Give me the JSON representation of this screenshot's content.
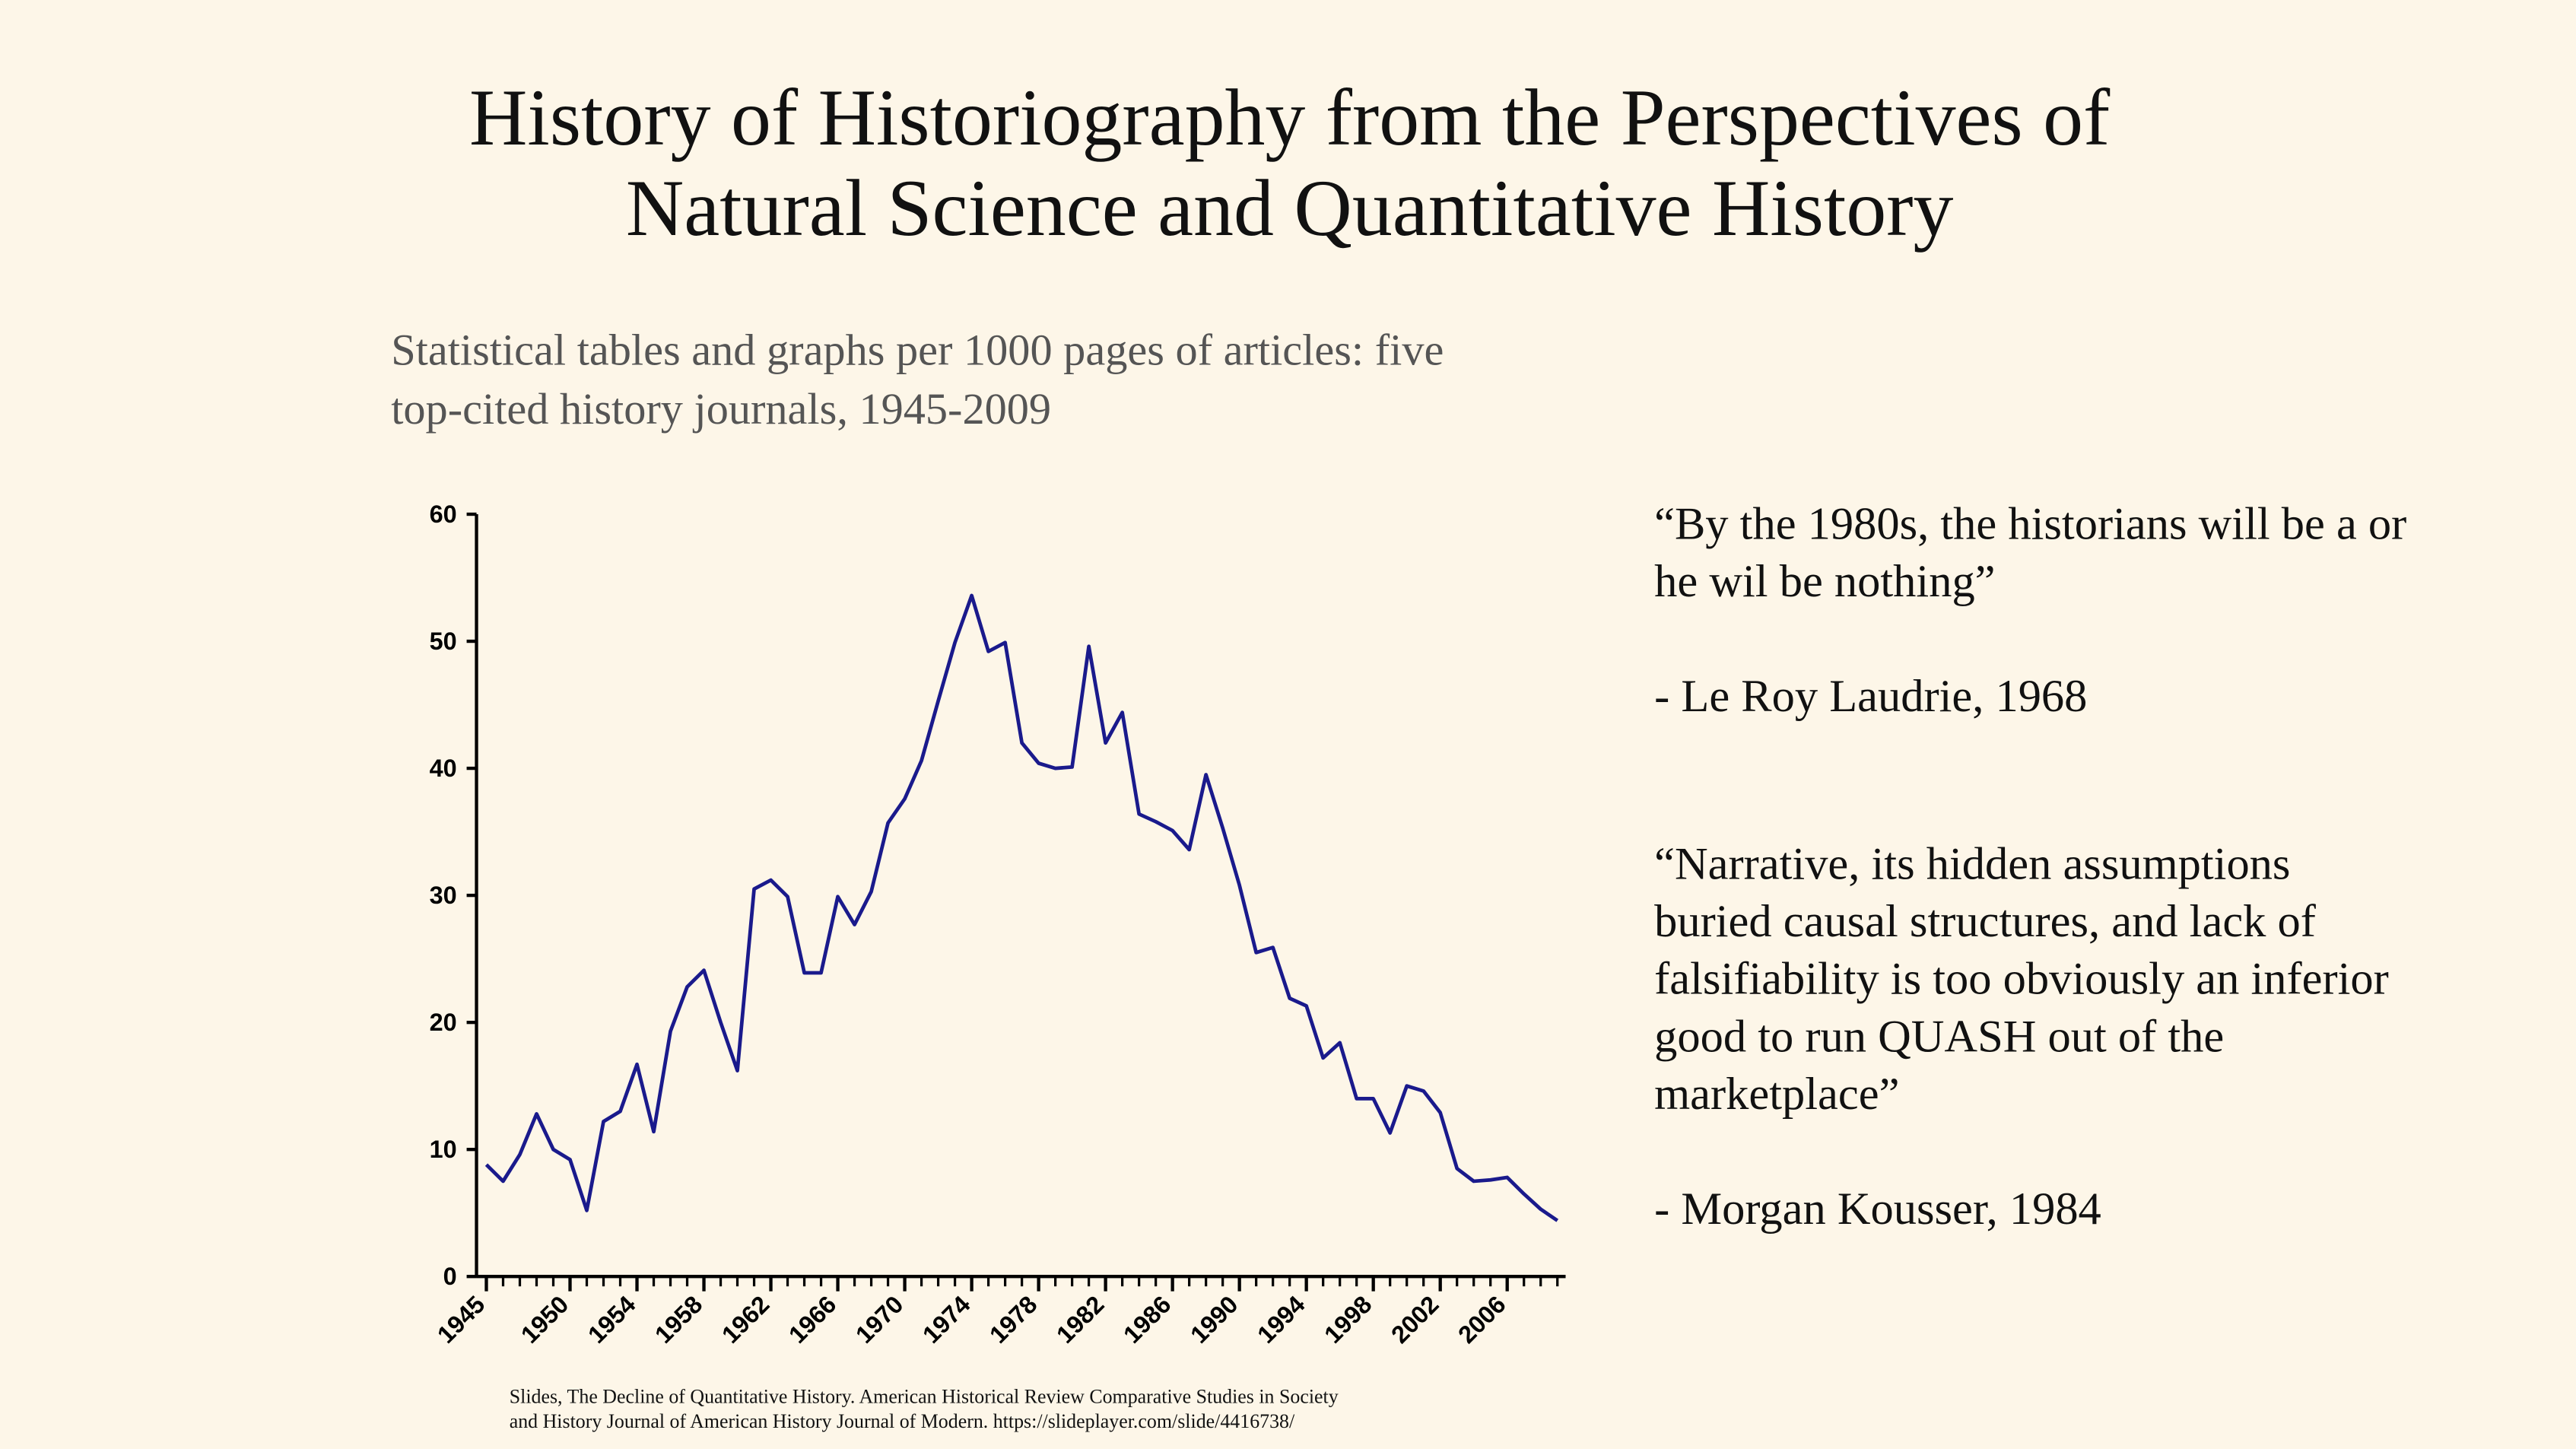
{
  "slide": {
    "title_lines": [
      "History of Historiography from the Perspectives of",
      "Natural Science and Quantitative History"
    ],
    "quotes": [
      {
        "lines": [
          "“By the 1980s, the historians will be a or",
          "he wil be nothing”"
        ],
        "author": "- Le Roy Laudrie, 1968"
      },
      {
        "lines": [
          "“Narrative, its hidden assumptions",
          "buried causal structures, and lack of",
          "falsifiability is too obviously an inferior",
          "good to run QUASH out of the",
          "marketplace”"
        ],
        "author": "- Morgan Kousser, 1984"
      }
    ],
    "source_lines": [
      "Slides, The Decline of Quantitative History. American Historical Review Comparative Studies in Society",
      "and History Journal of American History Journal of Modern. https://slideplayer.com/slide/4416738/"
    ]
  },
  "chart_data": {
    "type": "line",
    "title": [
      "Statistical tables and graphs per 1000 pages of articles: five",
      "top-cited history journals, 1945-2009"
    ],
    "x": [
      1945,
      1946,
      1947,
      1948,
      1949,
      1950,
      1951,
      1952,
      1953,
      1954,
      1955,
      1956,
      1957,
      1958,
      1959,
      1960,
      1961,
      1962,
      1963,
      1964,
      1965,
      1966,
      1967,
      1968,
      1969,
      1970,
      1971,
      1972,
      1973,
      1974,
      1975,
      1976,
      1977,
      1978,
      1979,
      1980,
      1981,
      1982,
      1983,
      1984,
      1985,
      1986,
      1987,
      1988,
      1989,
      1990,
      1991,
      1992,
      1993,
      1994,
      1995,
      1996,
      1997,
      1998,
      1999,
      2000,
      2001,
      2002,
      2003,
      2004,
      2005,
      2006,
      2007,
      2008,
      2009
    ],
    "series": [
      {
        "name": "Statistical tables and graphs",
        "color": "#1a1a8c",
        "values": [
          8.8,
          7.5,
          9.6,
          12.8,
          10,
          9.2,
          5.2,
          12.2,
          13,
          16.7,
          11.4,
          19.3,
          22.8,
          24.1,
          20,
          16.2,
          30.5,
          31.2,
          29.9,
          23.9,
          23.9,
          29.9,
          27.7,
          30.3,
          35.7,
          37.6,
          40.6,
          45.3,
          49.9,
          53.6,
          49.2,
          49.9,
          42,
          40.4,
          40,
          40.1,
          49.6,
          42,
          44.4,
          36.4,
          35.8,
          35.1,
          33.6,
          39.5,
          35.3,
          30.8,
          25.5,
          25.9,
          21.9,
          21.3,
          17.2,
          18.4,
          14,
          14,
          11.3,
          15,
          14.6,
          12.9,
          8.5,
          7.5,
          7.6,
          7.8,
          6.5,
          5.3,
          4.4
        ]
      }
    ],
    "xlim": [
      1945,
      2009
    ],
    "xticks": [
      1945,
      1950,
      1954,
      1958,
      1962,
      1966,
      1970,
      1974,
      1978,
      1982,
      1986,
      1990,
      1994,
      1998,
      2002,
      2006
    ],
    "ylim": [
      0,
      60
    ],
    "yticks": [
      0,
      10,
      20,
      30,
      40,
      50,
      60
    ],
    "grid": false
  }
}
